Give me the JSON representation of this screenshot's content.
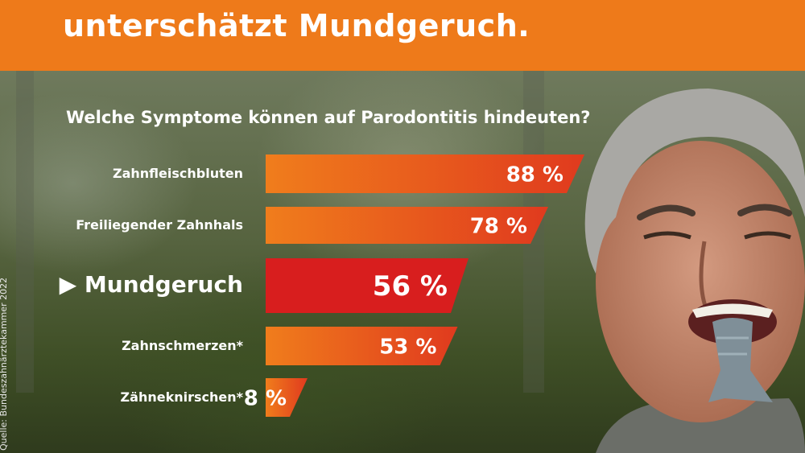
{
  "header": {
    "title": "unterschätzt Mundgeruch.",
    "bg_color": "#ee7a1a"
  },
  "chart_data": {
    "type": "bar",
    "orientation": "horizontal",
    "title": "Welche Symptome können auf Parodontitis hindeuten?",
    "categories": [
      "Zahnfleischbluten",
      "Freiliegender Zahnhals",
      "Mundgeruch",
      "Zahnschmerzen*",
      "Zähneknirschen*"
    ],
    "values": [
      88,
      78,
      56,
      53,
      8
    ],
    "value_labels": [
      "88 %",
      "78 %",
      "56 %",
      "53 %",
      "8 %"
    ],
    "highlighted_category": "Mundgeruch",
    "highlight_marker": "▶",
    "xlim": [
      0,
      100
    ],
    "colors": {
      "bar_start": "#f07d1c",
      "bar_end": "#e03a1e",
      "highlight": "#d81e1e"
    }
  },
  "side_note": "Quelle: Bundeszahnärztekammer 2022",
  "photo": {
    "icon": "person-with-fish-photo"
  }
}
